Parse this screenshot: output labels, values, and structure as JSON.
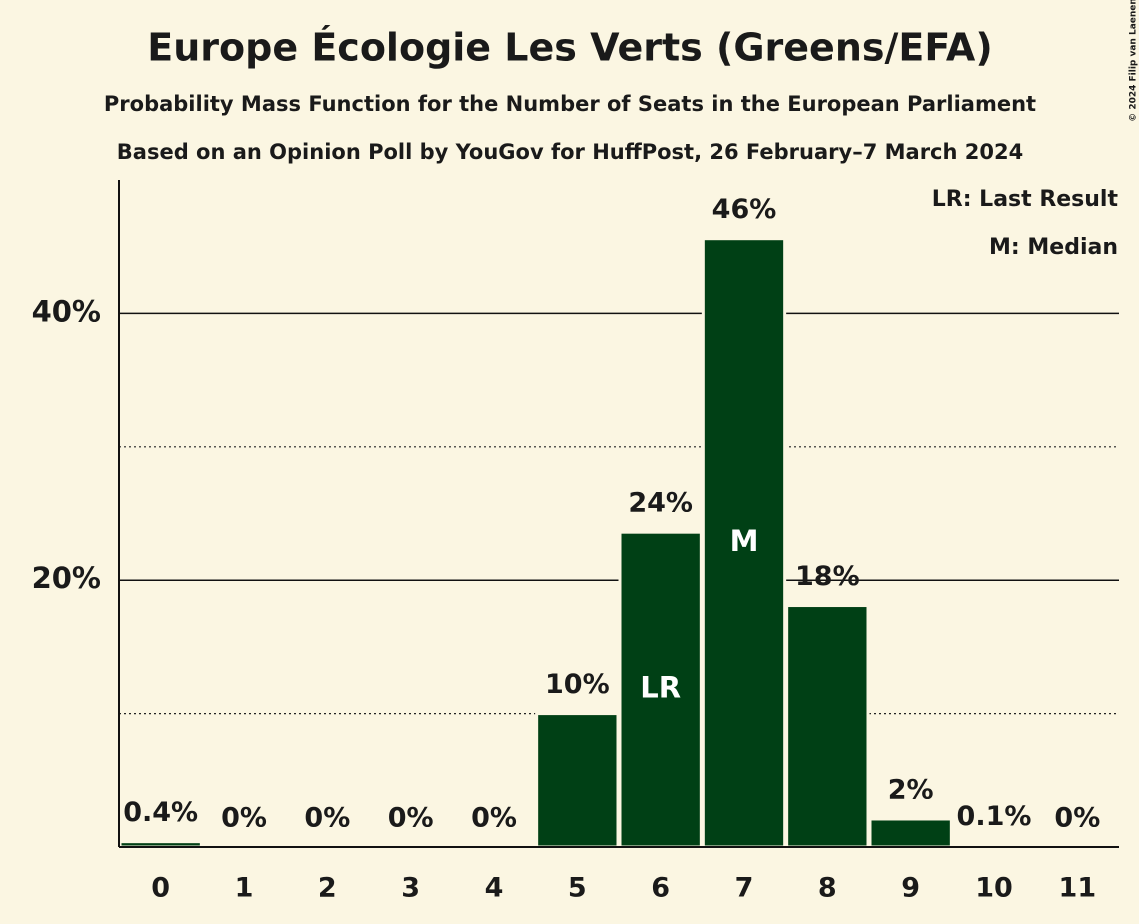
{
  "chart_data": {
    "type": "bar",
    "title": "Europe Écologie Les Verts (Greens/EFA)",
    "subtitle": "Probability Mass Function for the Number of Seats in the European Parliament",
    "source": "Based on an Opinion Poll by YouGov for HuffPost, 26 February–7 March 2024",
    "copyright": "© 2024 Filip van Laenen",
    "legend": [
      "LR: Last Result",
      "M: Median"
    ],
    "categories": [
      "0",
      "1",
      "2",
      "3",
      "4",
      "5",
      "6",
      "7",
      "8",
      "9",
      "10",
      "11"
    ],
    "values": [
      0.4,
      0,
      0,
      0,
      0,
      10,
      23.6,
      45.6,
      18.1,
      2.1,
      0.1,
      0
    ],
    "value_labels": [
      "0.4%",
      "0%",
      "0%",
      "0%",
      "0%",
      "10%",
      "24%",
      "46%",
      "18%",
      "2%",
      "0.1%",
      "0%"
    ],
    "bar_markers": [
      null,
      null,
      null,
      null,
      null,
      null,
      "LR",
      "M",
      null,
      null,
      null,
      null
    ],
    "color": "#004015",
    "ylim": [
      0,
      50
    ],
    "yticks": [
      {
        "value": 20,
        "label": "20%"
      },
      {
        "value": 40,
        "label": "40%"
      }
    ],
    "minor_yticks": [
      10,
      30
    ],
    "grid": true
  }
}
